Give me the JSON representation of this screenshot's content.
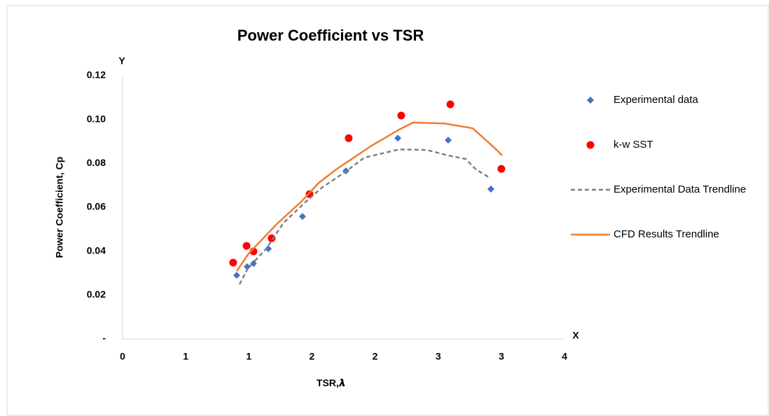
{
  "chart_data": {
    "type": "scatter",
    "title": "Power Coefficient vs TSR",
    "x_label": "TSR,𝝀",
    "y_label": "Power Coefficient, Cp",
    "annotations": [
      "Y",
      "X"
    ],
    "xlim": [
      0,
      3.5
    ],
    "xticks": [
      0,
      {
        "value": 0.5,
        "label": "1"
      },
      1,
      {
        "value": 1.5,
        "label": "2"
      },
      2,
      {
        "value": 2.5,
        "label": "3"
      },
      3,
      {
        "value": 3.5,
        "label": "4"
      }
    ],
    "ylim": [
      0,
      0.12
    ],
    "yticks": [
      {
        "value": 0,
        "label": "-"
      },
      0.02,
      0.04,
      0.06,
      0.08,
      {
        "value": 0.1,
        "label": "0.10"
      },
      0.12
    ],
    "grid": false,
    "legend": "right",
    "series": [
      {
        "name": "Experimental data",
        "color": "#4472c4",
        "marker": "diamond",
        "x": [
          0.904,
          0.987,
          1.037,
          1.154,
          1.425,
          1.769,
          2.18,
          2.579,
          2.917
        ],
        "values": [
          0.029,
          0.0329,
          0.0344,
          0.0411,
          0.0558,
          0.0766,
          0.0915,
          0.0906,
          0.0683
        ]
      },
      {
        "name": "k-w SST",
        "color": "#ff0000",
        "marker": "circle",
        "x": [
          0.876,
          0.982,
          1.037,
          1.181,
          1.481,
          1.791,
          2.207,
          2.596,
          3.0
        ],
        "values": [
          0.0348,
          0.0424,
          0.0399,
          0.0459,
          0.066,
          0.0915,
          0.1018,
          0.1069,
          0.0775
        ]
      },
      {
        "name": "Experimental Data Trendline",
        "color": "#808080",
        "line": "dashed",
        "x": [
          0.926,
          0.993,
          1.137,
          1.276,
          1.47,
          1.58,
          1.775,
          1.914,
          2.19,
          2.413,
          2.579,
          2.718,
          2.8,
          2.91
        ],
        "values": [
          0.0249,
          0.0322,
          0.0411,
          0.053,
          0.0635,
          0.069,
          0.0766,
          0.0826,
          0.0864,
          0.0861,
          0.0836,
          0.082,
          0.0772,
          0.0734
        ]
      },
      {
        "name": "CFD Results Trendline",
        "color": "#ed7d31",
        "line": "solid",
        "x": [
          0.904,
          0.998,
          1.22,
          1.414,
          1.553,
          1.69,
          1.97,
          2.19,
          2.3,
          2.55,
          2.773,
          2.94,
          3.006
        ],
        "values": [
          0.0309,
          0.0389,
          0.0523,
          0.0625,
          0.0711,
          0.0772,
          0.088,
          0.0954,
          0.0986,
          0.0982,
          0.096,
          0.0874,
          0.0836
        ]
      }
    ]
  }
}
